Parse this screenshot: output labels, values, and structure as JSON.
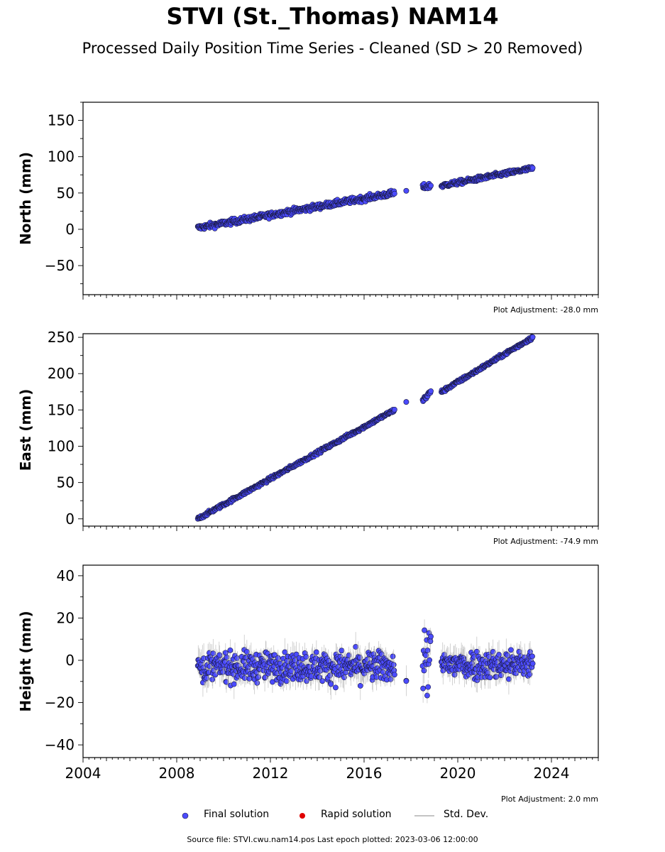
{
  "title": "STVI (St._Thomas) NAM14",
  "subtitle": "Processed Daily Position Time Series - Cleaned (SD > 20 Removed)",
  "legend": {
    "final": "Final solution",
    "rapid": "Rapid solution",
    "std": "Std. Dev."
  },
  "footer": "Source file: STVI.cwu.nam14.pos  Last epoch plotted: 2023-03-06 12:00:00",
  "colors": {
    "final": "#4b4bff",
    "rapid": "#e00000",
    "std": "#b0b0b0",
    "edge": "#1a1a40"
  },
  "chart_data": [
    {
      "type": "scatter",
      "ylabel": "North (mm)",
      "ylim": [
        -90,
        175
      ],
      "yticks": [
        -50,
        0,
        50,
        100,
        150
      ],
      "xlim": [
        2004,
        2026
      ],
      "adjustment": "Plot Adjustment: -28.0 mm",
      "segments": [
        {
          "x_start": 2008.9,
          "x_end": 2017.3,
          "y_start": 2,
          "y_end": 50,
          "scatter": 5
        },
        {
          "x_start": 2017.8,
          "x_end": 2017.8,
          "y_start": 53,
          "y_end": 53,
          "scatter": 0
        },
        {
          "x_start": 2018.5,
          "x_end": 2018.85,
          "y_start": 58,
          "y_end": 60,
          "scatter": 5
        },
        {
          "x_start": 2019.3,
          "x_end": 2023.2,
          "y_start": 60,
          "y_end": 84,
          "scatter": 4
        }
      ]
    },
    {
      "type": "scatter",
      "ylabel": "East (mm)",
      "ylim": [
        -10,
        255
      ],
      "yticks": [
        0,
        50,
        100,
        150,
        200,
        250
      ],
      "xlim": [
        2004,
        2026
      ],
      "adjustment": "Plot Adjustment: -74.9 mm",
      "segments": [
        {
          "x_start": 2008.9,
          "x_end": 2017.3,
          "y_start": 0,
          "y_end": 150,
          "scatter": 3
        },
        {
          "x_start": 2017.8,
          "x_end": 2017.8,
          "y_start": 161,
          "y_end": 161,
          "scatter": 0
        },
        {
          "x_start": 2018.5,
          "x_end": 2018.85,
          "y_start": 163,
          "y_end": 175,
          "scatter": 5
        },
        {
          "x_start": 2019.3,
          "x_end": 2023.2,
          "y_start": 175,
          "y_end": 250,
          "scatter": 3
        }
      ]
    },
    {
      "type": "scatter",
      "ylabel": "Height (mm)",
      "ylim": [
        -46,
        45
      ],
      "yticks": [
        -40,
        -20,
        0,
        20,
        40
      ],
      "xlim": [
        2004,
        2026
      ],
      "xticks": [
        2004,
        2008,
        2012,
        2016,
        2020,
        2024
      ],
      "adjustment": "Plot Adjustment: 2.0 mm",
      "segments": [
        {
          "x_start": 2008.9,
          "x_end": 2017.3,
          "y_start": -3,
          "y_end": -3,
          "scatter": 9
        },
        {
          "x_start": 2017.8,
          "x_end": 2017.8,
          "y_start": -11,
          "y_end": -11,
          "scatter": 3
        },
        {
          "x_start": 2018.5,
          "x_end": 2018.85,
          "y_start": 0,
          "y_end": 0,
          "scatter": 20
        },
        {
          "x_start": 2019.3,
          "x_end": 2023.2,
          "y_start": -2,
          "y_end": -2,
          "scatter": 9
        }
      ]
    }
  ]
}
